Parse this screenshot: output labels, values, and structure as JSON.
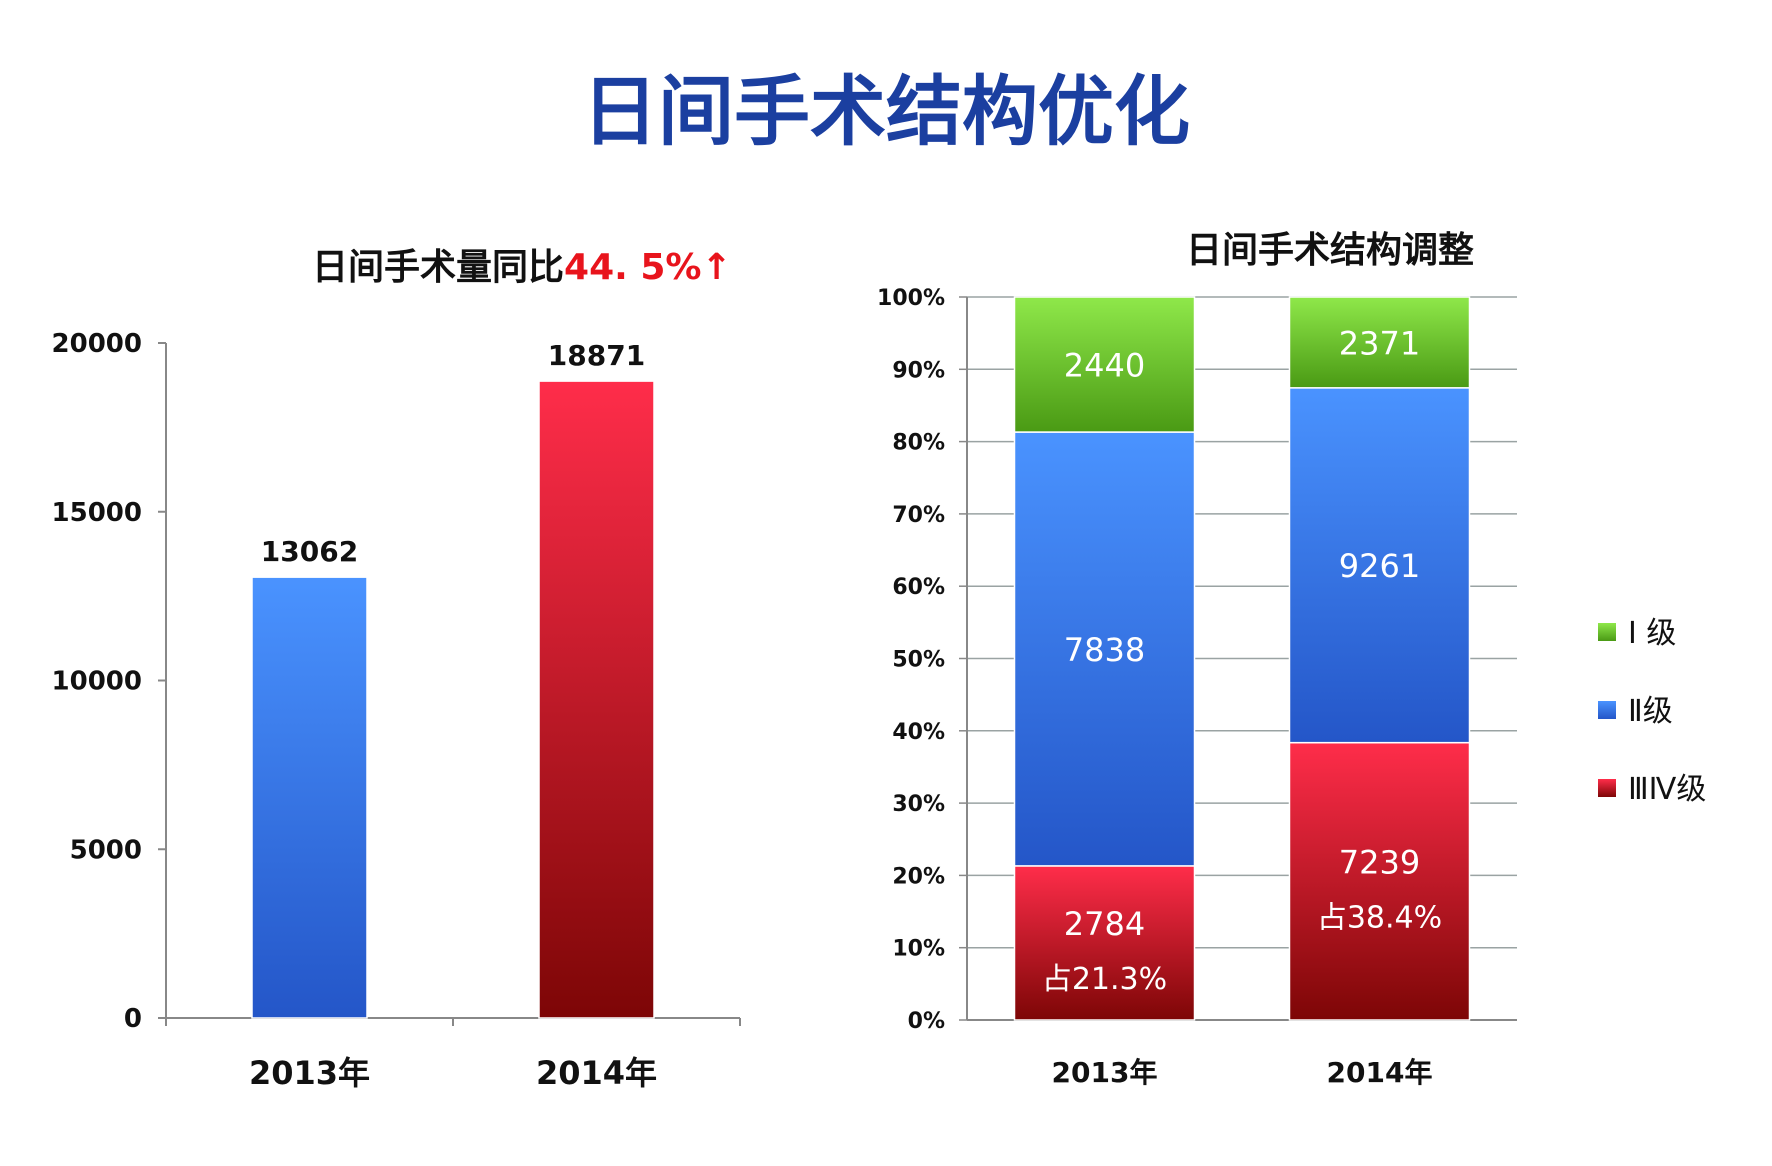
{
  "page": {
    "title": "日间手术结构优化",
    "title_color": "#1b3fa0"
  },
  "colors": {
    "blue_top": "#4a93ff",
    "blue_bottom": "#2456c8",
    "red_top": "#ff2d4a",
    "red_bottom": "#7d0606",
    "green_top": "#8fe84a",
    "green_bottom": "#4a9a14",
    "highlight_red": "#e8141c",
    "axis": "#888888",
    "grid": "#9aa3a3"
  },
  "chart_data": [
    {
      "type": "bar",
      "title": "日间手术量同比",
      "title_highlight": "44. 5%↑",
      "categories": [
        "2013年",
        "2014年"
      ],
      "values": [
        13062,
        18871
      ],
      "data_labels": [
        "13062",
        "18871"
      ],
      "bar_colors": [
        "blue",
        "red"
      ],
      "ylim": [
        0,
        20000
      ],
      "yticks": [
        "0",
        "5000",
        "10000",
        "15000",
        "20000"
      ],
      "ytick_values": [
        0,
        5000,
        10000,
        15000,
        20000
      ],
      "grid": false,
      "legend": "none"
    },
    {
      "type": "bar",
      "stacked": "percent",
      "title": "日间手术结构调整",
      "categories": [
        "2013年",
        "2014年"
      ],
      "series": [
        {
          "name": "ⅢⅣ级",
          "color": "red",
          "values": [
            2784,
            7239
          ],
          "labels": [
            "2784",
            "7239"
          ],
          "share_labels": [
            "占21.3%",
            "占38.4%"
          ]
        },
        {
          "name": "Ⅱ级",
          "color": "blue",
          "values": [
            7838,
            9261
          ],
          "labels": [
            "7838",
            "9261"
          ]
        },
        {
          "name": "Ⅰ 级",
          "color": "green",
          "values": [
            2440,
            2371
          ],
          "labels": [
            "2440",
            "2371"
          ]
        }
      ],
      "ylim": [
        0,
        100
      ],
      "yticks": [
        "0%",
        "10%",
        "20%",
        "30%",
        "40%",
        "50%",
        "60%",
        "70%",
        "80%",
        "90%",
        "100%"
      ],
      "ytick_values": [
        0,
        10,
        20,
        30,
        40,
        50,
        60,
        70,
        80,
        90,
        100
      ],
      "grid": true,
      "legend": "right",
      "legend_order": [
        "Ⅰ 级",
        "Ⅱ级",
        "ⅢⅣ级"
      ]
    }
  ]
}
